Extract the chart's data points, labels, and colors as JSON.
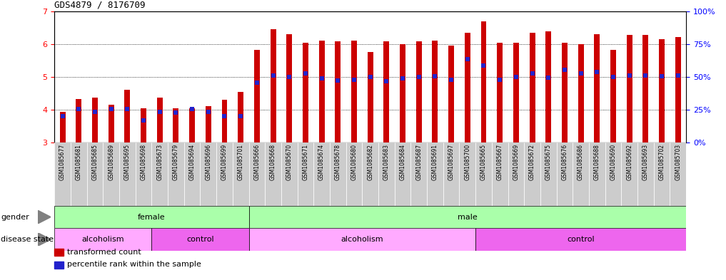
{
  "title": "GDS4879 / 8176709",
  "samples": [
    "GSM1085677",
    "GSM1085681",
    "GSM1085685",
    "GSM1085689",
    "GSM1085695",
    "GSM1085698",
    "GSM1085673",
    "GSM1085679",
    "GSM1085694",
    "GSM1085696",
    "GSM1085699",
    "GSM1085701",
    "GSM1085666",
    "GSM1085668",
    "GSM1085670",
    "GSM1085671",
    "GSM1085674",
    "GSM1085678",
    "GSM1085680",
    "GSM1085682",
    "GSM1085683",
    "GSM1085684",
    "GSM1085687",
    "GSM1085691",
    "GSM1085697",
    "GSM1085700",
    "GSM1085665",
    "GSM1085667",
    "GSM1085669",
    "GSM1085672",
    "GSM1085675",
    "GSM1085676",
    "GSM1085686",
    "GSM1085688",
    "GSM1085690",
    "GSM1085692",
    "GSM1085693",
    "GSM1085702",
    "GSM1085703"
  ],
  "bar_heights": [
    3.93,
    4.32,
    4.38,
    4.15,
    4.62,
    4.05,
    4.38,
    4.05,
    4.05,
    4.12,
    4.3,
    4.55,
    5.82,
    6.45,
    6.3,
    6.05,
    6.1,
    6.08,
    6.1,
    5.75,
    6.08,
    6.0,
    6.08,
    6.1,
    5.95,
    6.35,
    6.68,
    6.05,
    6.05,
    6.35,
    6.38,
    6.05,
    6.0,
    6.3,
    5.82,
    6.28,
    6.28,
    6.15,
    6.22
  ],
  "percentile_values": [
    3.82,
    4.02,
    3.95,
    4.02,
    4.02,
    3.68,
    3.95,
    3.92,
    4.02,
    3.95,
    3.82,
    3.82,
    4.82,
    5.05,
    5.0,
    5.1,
    4.95,
    4.9,
    4.92,
    5.0,
    4.88,
    4.95,
    5.0,
    5.02,
    4.92,
    5.55,
    5.35,
    4.92,
    5.0,
    5.1,
    4.98,
    5.22,
    5.12,
    5.15,
    5.0,
    5.05,
    5.05,
    5.02,
    5.05
  ],
  "ylim": [
    3.0,
    7.0
  ],
  "yticks_left": [
    3,
    4,
    5,
    6,
    7
  ],
  "yticks_right_labels": [
    "0%",
    "25%",
    "50%",
    "75%",
    "100%"
  ],
  "bar_color": "#cc0000",
  "percentile_color": "#2222cc",
  "bar_width": 0.35,
  "gender_segments": [
    {
      "label": "female",
      "start": 0,
      "end": 11,
      "color": "#aaffaa"
    },
    {
      "label": "male",
      "start": 12,
      "end": 38,
      "color": "#aaffaa"
    }
  ],
  "disease_segments": [
    {
      "label": "alcoholism",
      "start": 0,
      "end": 5,
      "color": "#ffaaff"
    },
    {
      "label": "control",
      "start": 6,
      "end": 11,
      "color": "#ee66ee"
    },
    {
      "label": "alcoholism",
      "start": 12,
      "end": 25,
      "color": "#ffaaff"
    },
    {
      "label": "control",
      "start": 26,
      "end": 38,
      "color": "#ee66ee"
    }
  ],
  "legend_items": [
    {
      "label": "transformed count",
      "color": "#cc0000"
    },
    {
      "label": "percentile rank within the sample",
      "color": "#2222cc"
    }
  ]
}
